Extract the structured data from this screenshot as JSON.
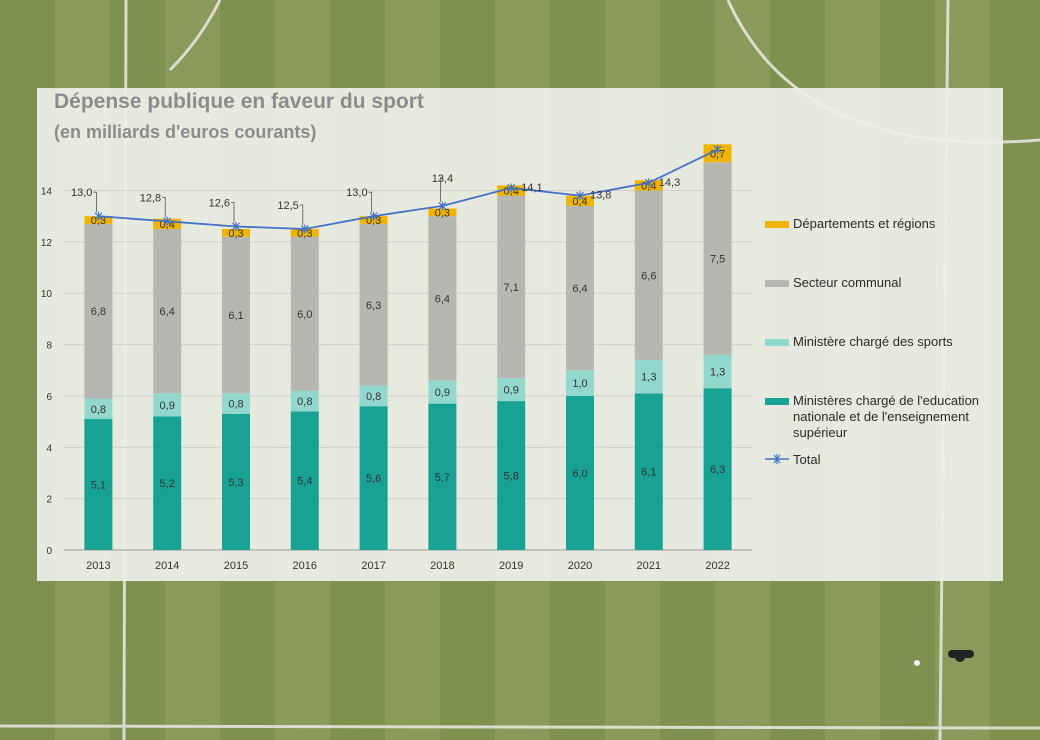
{
  "title": "Dépense publique en faveur du sport",
  "subtitle": "(en milliards d'euros courants)",
  "colors": {
    "departements": "#f0b400",
    "communal": "#b7b7b2",
    "sports": "#93d8cc",
    "education": "#17a294",
    "total": "#4472c4"
  },
  "chart_data": {
    "type": "bar",
    "stacked": true,
    "categories": [
      "2013",
      "2014",
      "2015",
      "2016",
      "2017",
      "2018",
      "2019",
      "2020",
      "2021",
      "2022"
    ],
    "series": [
      {
        "name": "Ministères chargé de l'education nationale et de l'enseignement supérieur",
        "key": "education",
        "values": [
          5.1,
          5.2,
          5.3,
          5.4,
          5.6,
          5.7,
          5.8,
          6.0,
          6.1,
          6.3
        ],
        "labels": [
          "5,1",
          "5,2",
          "5,3",
          "5,4",
          "5,6",
          "5,7",
          "5,8",
          "6,0",
          "6,1",
          "6,3"
        ]
      },
      {
        "name": "Ministère chargé des sports",
        "key": "sports",
        "values": [
          0.8,
          0.9,
          0.8,
          0.8,
          0.8,
          0.9,
          0.9,
          1.0,
          1.3,
          1.3
        ],
        "labels": [
          "0,8",
          "0,9",
          "0,8",
          "0,8",
          "0,8",
          "0,9",
          "0,9",
          "1,0",
          "1,3",
          "1,3"
        ]
      },
      {
        "name": "Secteur communal",
        "key": "communal",
        "values": [
          6.8,
          6.4,
          6.1,
          6.0,
          6.3,
          6.4,
          7.1,
          6.4,
          6.6,
          7.5
        ],
        "labels": [
          "6,8",
          "6,4",
          "6,1",
          "6,0",
          "6,3",
          "6,4",
          "7,1",
          "6,4",
          "6,6",
          "7,5"
        ]
      },
      {
        "name": "Départements et régions",
        "key": "departements",
        "values": [
          0.3,
          0.4,
          0.3,
          0.3,
          0.3,
          0.3,
          0.4,
          0.4,
          0.4,
          0.7
        ],
        "labels": [
          "0,3",
          "0,4",
          "0,3",
          "0,3",
          "0,3",
          "0,3",
          "0,4",
          "0,4",
          "0,4",
          "0,7"
        ]
      }
    ],
    "total": {
      "name": "Total",
      "values": [
        13.0,
        12.8,
        12.6,
        12.5,
        13.0,
        13.4,
        14.1,
        13.8,
        14.3,
        15.6
      ],
      "labels": [
        "13,0",
        "12,8",
        "12,6",
        "12,5",
        "13,0",
        "13,4",
        "14,1",
        "13,8",
        "14,3",
        ""
      ]
    },
    "ylim": [
      0,
      15.5
    ],
    "yticks": [
      0,
      2,
      4,
      6,
      8,
      10,
      12,
      14
    ],
    "grid": true,
    "legend_position": "right"
  }
}
